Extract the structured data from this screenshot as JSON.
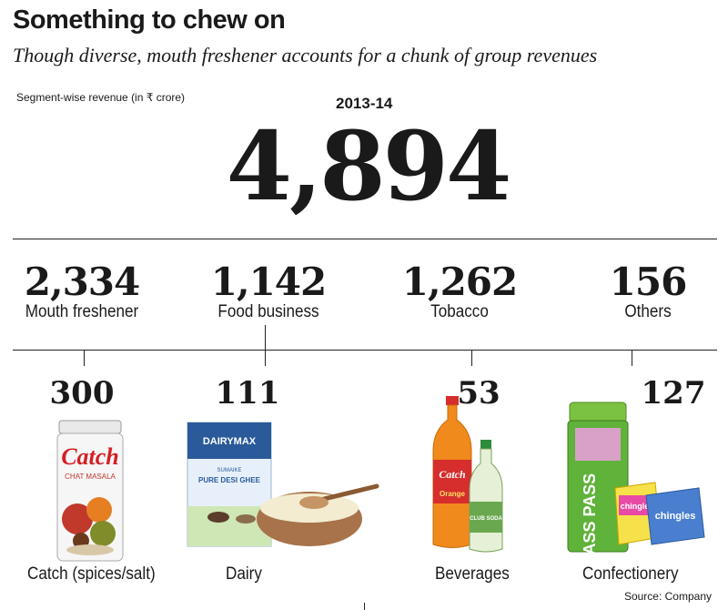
{
  "header": {
    "title": "Something to chew on",
    "subtitle": "Though diverse, mouth freshener accounts for a chunk of group revenues",
    "unit_label": "Segment-wise revenue (in ₹ crore)",
    "year": "2013-14",
    "total": "4,894"
  },
  "chart_data": {
    "type": "table",
    "title": "Something to chew on",
    "subtitle": "Though diverse, mouth freshener accounts for a chunk of group revenues",
    "unit": "Segment-wise revenue (in ₹ crore)",
    "year": "2013-14",
    "total": 4894,
    "segments": [
      {
        "name": "Mouth freshener",
        "value": 2334,
        "display": "2,334"
      },
      {
        "name": "Food business",
        "value": 1142,
        "display": "1,142"
      },
      {
        "name": "Tobacco",
        "value": 1262,
        "display": "1,262"
      },
      {
        "name": "Others",
        "value": 156,
        "display": "156"
      }
    ],
    "subsegments": [
      {
        "name": "Catch (spices/salt)",
        "value": 300,
        "display": "300"
      },
      {
        "name": "Dairy",
        "value": 111,
        "display": "111"
      },
      {
        "name": "Beverages",
        "value": 53,
        "display": "53"
      },
      {
        "name": "Confectionery",
        "value": 127,
        "display": "127"
      }
    ]
  },
  "products": {
    "catch": {
      "brand": "Catch",
      "sub": "CHAT MASALA"
    },
    "dairy": {
      "brand": "DAIRYMAX",
      "sub": "PURE DESI GHEE",
      "sub2": "SUMAIKE"
    },
    "beverages": {
      "brand": "Catch",
      "sub": "Orange",
      "brand2": "CLUB SODA"
    },
    "confectionery": {
      "brand": "PASS PASS",
      "brand2": "chingles",
      "brand3": "chingles"
    }
  },
  "footer": {
    "source": "Source: Company"
  },
  "colors": {
    "text": "#1a1a1a",
    "line": "#222222"
  }
}
